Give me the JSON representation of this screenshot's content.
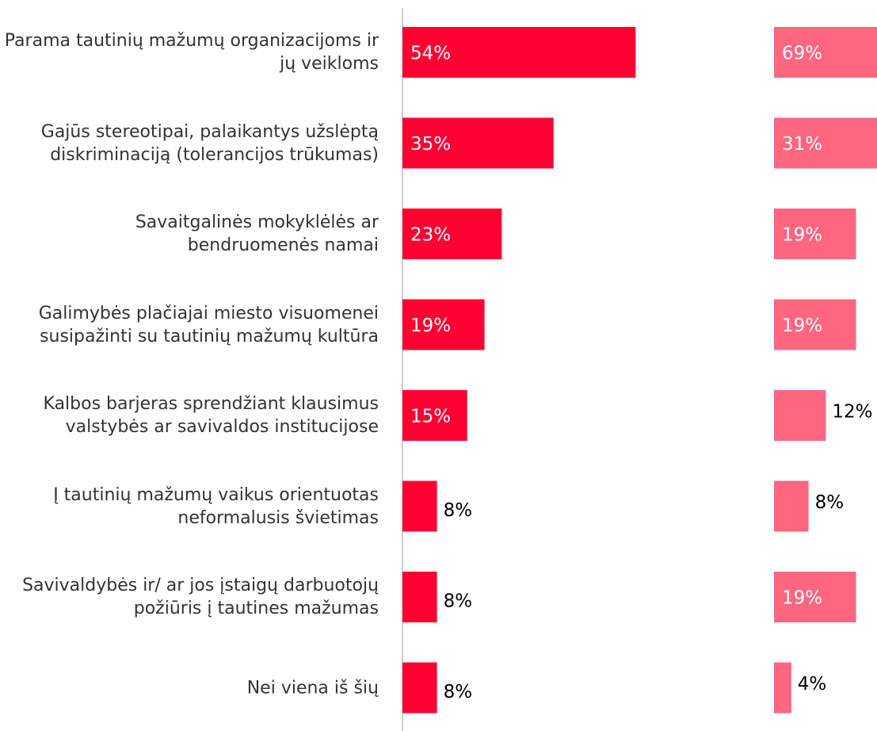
{
  "chart_data": {
    "type": "bar",
    "orientation": "horizontal",
    "categories": [
      "Parama tautinių mažumų organizacijoms ir jų veikloms",
      "Gajūs stereotipai, palaikantys užslėptą diskriminaciją (tolerancijos trūkumas)",
      "Savaitgalinės mokyklėlės ar bendruomenės namai",
      "Galimybės plačiajai miesto visuomenei susipažinti su tautinių mažumų kultūra",
      "Kalbos barjeras sprendžiant klausimus valstybės ar savivaldos institucijose",
      "Į tautinių mažumų vaikus orientuotas neformalusis švietimas",
      "Savivaldybės ir/ ar jos įstaigų darbuotojų požiūris į tautines mažumas",
      "Nei viena iš šių"
    ],
    "series": [
      {
        "color": "#ff0033",
        "values": [
          54,
          35,
          23,
          19,
          15,
          8,
          8,
          8
        ],
        "value_labels": [
          "54%",
          "35%",
          "23%",
          "19%",
          "15%",
          "8%",
          "8%",
          "8%"
        ]
      },
      {
        "color": "#ff6680",
        "values": [
          69,
          31,
          19,
          19,
          12,
          8,
          19,
          4
        ],
        "value_labels": [
          "69%",
          "31%",
          "19%",
          "19%",
          "12%",
          "8%",
          "19%",
          "4%"
        ]
      }
    ]
  }
}
